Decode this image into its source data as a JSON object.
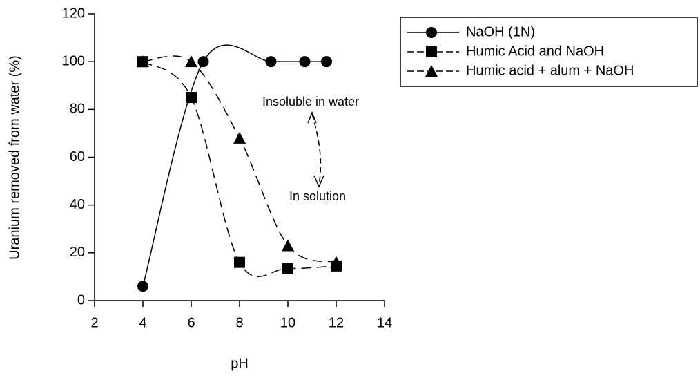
{
  "chart_data": {
    "type": "line",
    "xlabel": "pH",
    "ylabel": "Uranium removed from water (%)",
    "xlim": [
      2,
      14
    ],
    "xticks": [
      2,
      4,
      6,
      8,
      10,
      12,
      14
    ],
    "ylim": [
      0,
      120
    ],
    "yticks": [
      0,
      20,
      40,
      60,
      80,
      100,
      120
    ],
    "series": [
      {
        "name": "NaOH (1N)",
        "color": "#000000",
        "marker": "circle",
        "dash": "solid",
        "x": [
          4,
          6.5,
          9.3,
          10.7,
          11.6
        ],
        "values": [
          6,
          100,
          100,
          100,
          100
        ]
      },
      {
        "name": "Humic Acid and NaOH",
        "color": "#000000",
        "marker": "square",
        "dash": "dashed",
        "x": [
          4,
          6,
          8,
          10,
          12
        ],
        "values": [
          100,
          85,
          16,
          13.5,
          14.5
        ]
      },
      {
        "name": "Humic acid + alum + NaOH",
        "color": "#000000",
        "marker": "triangle",
        "dash": "dashed",
        "x": [
          4,
          6,
          8,
          10,
          12
        ],
        "values": [
          100,
          100,
          68,
          23,
          16
        ]
      }
    ],
    "annotations": [
      "Insoluble in water",
      "In solution"
    ]
  }
}
